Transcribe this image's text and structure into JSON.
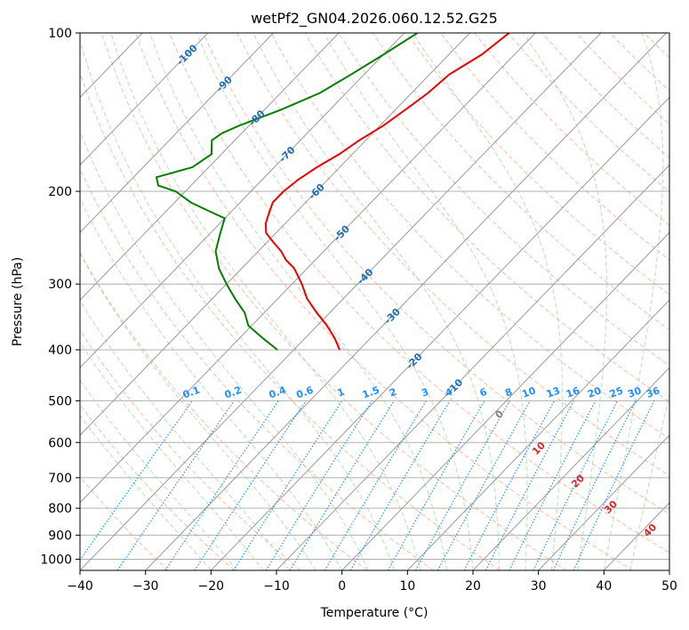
{
  "chart_data": {
    "type": "line",
    "title": "wetPf2_GN04.2026.060.12.52.G25",
    "xlabel": "Temperature (°C)",
    "ylabel": "Pressure (hPa)",
    "xlim": [
      -40,
      50
    ],
    "ylim": [
      1050,
      100
    ],
    "yscale": "log",
    "grid": true,
    "x_ticks": [
      -40,
      -30,
      -20,
      -10,
      0,
      10,
      20,
      30,
      40,
      50
    ],
    "y_ticks": [
      100,
      200,
      300,
      400,
      500,
      600,
      700,
      800,
      900,
      1000
    ],
    "series": [
      {
        "role": "temperature",
        "color": "#ee0000",
        "points": [
          {
            "p": 100,
            "t": -54
          },
          {
            "p": 110,
            "t": -55
          },
          {
            "p": 120,
            "t": -57
          },
          {
            "p": 130,
            "t": -57.5
          },
          {
            "p": 140,
            "t": -58.5
          },
          {
            "p": 150,
            "t": -59.5
          },
          {
            "p": 160,
            "t": -61
          },
          {
            "p": 170,
            "t": -62
          },
          {
            "p": 180,
            "t": -63.5
          },
          {
            "p": 190,
            "t": -64.5
          },
          {
            "p": 200,
            "t": -65
          },
          {
            "p": 210,
            "t": -65
          },
          {
            "p": 220,
            "t": -64
          },
          {
            "p": 230,
            "t": -63
          },
          {
            "p": 240,
            "t": -61.5
          },
          {
            "p": 250,
            "t": -59
          },
          {
            "p": 260,
            "t": -56.5
          },
          {
            "p": 270,
            "t": -54.5
          },
          {
            "p": 280,
            "t": -52
          },
          {
            "p": 300,
            "t": -48.5
          },
          {
            "p": 320,
            "t": -45.5
          },
          {
            "p": 340,
            "t": -42
          },
          {
            "p": 360,
            "t": -38.5
          },
          {
            "p": 380,
            "t": -35.5
          },
          {
            "p": 400,
            "t": -33
          }
        ]
      },
      {
        "role": "dewpoint",
        "color": "#008000",
        "points": [
          {
            "p": 100,
            "t": -68
          },
          {
            "p": 110,
            "t": -70
          },
          {
            "p": 120,
            "t": -72
          },
          {
            "p": 130,
            "t": -74
          },
          {
            "p": 140,
            "t": -77.5
          },
          {
            "p": 150,
            "t": -81.5
          },
          {
            "p": 155,
            "t": -83
          },
          {
            "p": 160,
            "t": -83.5
          },
          {
            "p": 170,
            "t": -81.5
          },
          {
            "p": 180,
            "t": -82.5
          },
          {
            "p": 188,
            "t": -86.5
          },
          {
            "p": 195,
            "t": -85
          },
          {
            "p": 200,
            "t": -81.5
          },
          {
            "p": 210,
            "t": -77.5
          },
          {
            "p": 220,
            "t": -72.5
          },
          {
            "p": 225,
            "t": -70
          },
          {
            "p": 230,
            "t": -69.5
          },
          {
            "p": 240,
            "t": -68.5
          },
          {
            "p": 260,
            "t": -66.5
          },
          {
            "p": 280,
            "t": -63.5
          },
          {
            "p": 300,
            "t": -60
          },
          {
            "p": 320,
            "t": -56.5
          },
          {
            "p": 340,
            "t": -53
          },
          {
            "p": 360,
            "t": -50.5
          },
          {
            "p": 380,
            "t": -46.5
          },
          {
            "p": 400,
            "t": -42.5
          }
        ]
      }
    ],
    "isotherm_labels": [
      -100,
      -90,
      -80,
      -70,
      -60,
      -50,
      -40,
      -30,
      -20,
      -10
    ],
    "moist_adiabat_labels": [
      0,
      10,
      20,
      30,
      40
    ],
    "mixing_ratio_labels": [
      "0.1",
      "0.2",
      "0.4",
      "0.6",
      "1",
      "1.5",
      "2",
      "3",
      "4",
      "6",
      "8",
      "10",
      "13",
      "16",
      "20",
      "25",
      "30",
      "36"
    ],
    "mixing_ratio_values": [
      0.1,
      0.2,
      0.4,
      0.6,
      1,
      1.5,
      2,
      3,
      4,
      6,
      8,
      10,
      13,
      16,
      20,
      25,
      30,
      36
    ],
    "colors": {
      "temperature": "#ee0000",
      "dewpoint": "#008000",
      "isotherm_label": "#1f6fb5",
      "mixing_ratio": "#1e90ff",
      "moist_adiabat_label": "#d62728",
      "dry_adiabat": "#ff8c69",
      "moist_adiabat": "#9ccf9c"
    }
  }
}
